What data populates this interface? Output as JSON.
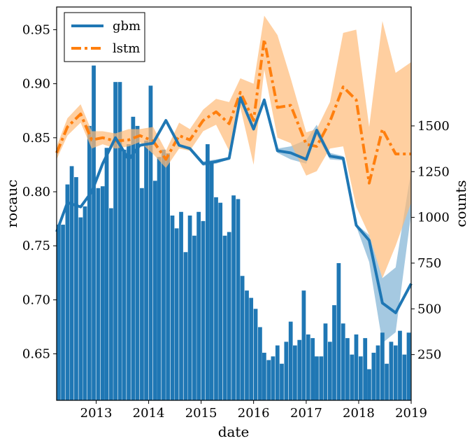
{
  "chart_data": {
    "type": "line",
    "xlabel": "date",
    "ylabel": "rocauc",
    "y2label": "counts",
    "xlim": [
      "2012-04-01",
      "2019-01-01"
    ],
    "ylim": [
      0.607,
      0.971
    ],
    "y2lim": [
      0,
      2150
    ],
    "xticks": [
      "2013",
      "2014",
      "2015",
      "2016",
      "2017",
      "2018",
      "2019"
    ],
    "xtick_dates": [
      "2013-01-01",
      "2014-01-01",
      "2015-01-01",
      "2016-01-01",
      "2017-01-01",
      "2018-01-01",
      "2019-01-01"
    ],
    "yticks": [
      "0.65",
      "0.70",
      "0.75",
      "0.80",
      "0.85",
      "0.90",
      "0.95"
    ],
    "ytick_values": [
      0.65,
      0.7,
      0.75,
      0.8,
      0.85,
      0.9,
      0.95
    ],
    "y2ticks": [
      "250",
      "500",
      "750",
      "1000",
      "1250",
      "1500"
    ],
    "y2tick_values": [
      250,
      500,
      750,
      1000,
      1250,
      1500
    ],
    "legend_position": "top-left",
    "grid": false,
    "colors": {
      "gbm": "#1f77b4",
      "lstm": "#ff7f0e",
      "lstm_band": "#ffbb78",
      "gbm_band": "#1f77b4"
    },
    "series": [
      {
        "name": "gbm",
        "style": "solid",
        "x": [
          "2012-04-01",
          "2012-06-15",
          "2012-09-15",
          "2012-12-01",
          "2013-02-15",
          "2013-05-15",
          "2013-08-15",
          "2013-11-01",
          "2014-02-01",
          "2014-05-01",
          "2014-08-01",
          "2014-10-15",
          "2015-01-15",
          "2015-04-15",
          "2015-07-15",
          "2015-10-01",
          "2016-01-01",
          "2016-03-15",
          "2016-06-15",
          "2016-09-15",
          "2017-01-01",
          "2017-03-15",
          "2017-06-15",
          "2017-09-15",
          "2017-12-15",
          "2018-03-15",
          "2018-06-15",
          "2018-09-15",
          "2019-01-01"
        ],
        "y": [
          0.763,
          0.79,
          0.786,
          0.8,
          0.826,
          0.85,
          0.83,
          0.843,
          0.845,
          0.866,
          0.843,
          0.84,
          0.826,
          0.828,
          0.831,
          0.887,
          0.858,
          0.885,
          0.838,
          0.836,
          0.83,
          0.857,
          0.833,
          0.831,
          0.769,
          0.755,
          0.697,
          0.688,
          0.715
        ],
        "lower": [
          0.763,
          0.79,
          0.786,
          0.8,
          0.826,
          0.85,
          0.83,
          0.843,
          0.845,
          0.866,
          0.843,
          0.838,
          0.824,
          0.826,
          0.83,
          0.885,
          0.856,
          0.883,
          0.836,
          0.83,
          0.826,
          0.852,
          0.83,
          0.829,
          0.768,
          0.735,
          0.66,
          0.67,
          0.78
        ],
        "upper": [
          0.763,
          0.79,
          0.786,
          0.8,
          0.826,
          0.85,
          0.83,
          0.843,
          0.845,
          0.866,
          0.843,
          0.842,
          0.828,
          0.83,
          0.832,
          0.889,
          0.86,
          0.887,
          0.84,
          0.842,
          0.848,
          0.862,
          0.836,
          0.833,
          0.77,
          0.76,
          0.72,
          0.73,
          0.82
        ]
      },
      {
        "name": "lstm",
        "style": "dashdot",
        "x": [
          "2012-04-01",
          "2012-06-15",
          "2012-09-15",
          "2012-12-01",
          "2013-02-15",
          "2013-05-15",
          "2013-08-15",
          "2013-11-01",
          "2014-02-01",
          "2014-05-01",
          "2014-08-01",
          "2014-10-15",
          "2015-01-15",
          "2015-04-15",
          "2015-07-15",
          "2015-10-01",
          "2016-01-01",
          "2016-03-15",
          "2016-06-15",
          "2016-09-15",
          "2017-01-01",
          "2017-03-15",
          "2017-06-15",
          "2017-09-15",
          "2017-12-15",
          "2018-03-15",
          "2018-06-15",
          "2018-09-15",
          "2019-01-01"
        ],
        "y": [
          0.836,
          0.86,
          0.872,
          0.848,
          0.85,
          0.847,
          0.848,
          0.852,
          0.847,
          0.83,
          0.852,
          0.848,
          0.866,
          0.874,
          0.863,
          0.892,
          0.866,
          0.941,
          0.878,
          0.88,
          0.844,
          0.842,
          0.865,
          0.897,
          0.885,
          0.808,
          0.858,
          0.835,
          0.835
        ],
        "lower": [
          0.83,
          0.852,
          0.864,
          0.84,
          0.844,
          0.84,
          0.842,
          0.846,
          0.835,
          0.822,
          0.84,
          0.838,
          0.856,
          0.862,
          0.838,
          0.878,
          0.825,
          0.913,
          0.85,
          0.845,
          0.815,
          0.819,
          0.84,
          0.842,
          0.786,
          0.76,
          0.72,
          0.75,
          0.79
        ],
        "upper": [
          0.842,
          0.868,
          0.881,
          0.856,
          0.856,
          0.854,
          0.858,
          0.858,
          0.86,
          0.838,
          0.864,
          0.858,
          0.876,
          0.886,
          0.883,
          0.905,
          0.9,
          0.963,
          0.945,
          0.905,
          0.855,
          0.858,
          0.883,
          0.947,
          0.95,
          0.86,
          0.958,
          0.91,
          0.92
        ]
      }
    ],
    "bars": {
      "name": "counts",
      "width_days": 28,
      "x": [
        "2012-04-15",
        "2012-05-15",
        "2012-06-15",
        "2012-07-15",
        "2012-08-15",
        "2012-09-15",
        "2012-10-15",
        "2012-11-15",
        "2012-12-15",
        "2013-01-15",
        "2013-02-15",
        "2013-03-15",
        "2013-04-15",
        "2013-05-15",
        "2013-06-15",
        "2013-07-15",
        "2013-08-15",
        "2013-09-15",
        "2013-10-15",
        "2013-11-15",
        "2013-12-15",
        "2014-01-15",
        "2014-02-15",
        "2014-03-15",
        "2014-04-15",
        "2014-05-15",
        "2014-06-15",
        "2014-07-15",
        "2014-08-15",
        "2014-09-15",
        "2014-10-15",
        "2014-11-15",
        "2014-12-15",
        "2015-01-15",
        "2015-02-15",
        "2015-03-15",
        "2015-04-15",
        "2015-05-15",
        "2015-06-15",
        "2015-07-15",
        "2015-08-15",
        "2015-09-15",
        "2015-10-15",
        "2015-11-15",
        "2015-12-15",
        "2016-01-15",
        "2016-02-15",
        "2016-03-15",
        "2016-04-15",
        "2016-05-15",
        "2016-06-15",
        "2016-07-15",
        "2016-08-15",
        "2016-09-15",
        "2016-10-15",
        "2016-11-15",
        "2016-12-15",
        "2017-01-15",
        "2017-02-15",
        "2017-03-15",
        "2017-04-15",
        "2017-05-15",
        "2017-06-15",
        "2017-07-15",
        "2017-08-15",
        "2017-09-15",
        "2017-10-15",
        "2017-11-15",
        "2017-12-15",
        "2018-01-15",
        "2018-02-15",
        "2018-03-15",
        "2018-04-15",
        "2018-05-15",
        "2018-06-15",
        "2018-07-15",
        "2018-08-15",
        "2018-09-15",
        "2018-10-15",
        "2018-11-15",
        "2018-12-15"
      ],
      "values": [
        960,
        960,
        1180,
        1280,
        1220,
        1000,
        1060,
        1500,
        1830,
        1160,
        1170,
        1380,
        1050,
        1740,
        1740,
        1370,
        1400,
        1550,
        1500,
        1160,
        1420,
        1720,
        1200,
        1330,
        1370,
        1350,
        1010,
        940,
        1030,
        810,
        1010,
        900,
        1030,
        980,
        1400,
        1300,
        1110,
        1080,
        900,
        920,
        1120,
        1100,
        680,
        600,
        560,
        500,
        400,
        260,
        220,
        240,
        300,
        200,
        320,
        430,
        300,
        330,
        600,
        360,
        340,
        240,
        240,
        420,
        320,
        520,
        750,
        420,
        340,
        250,
        360,
        240,
        340,
        170,
        260,
        300,
        370,
        200,
        320,
        300,
        380,
        250,
        370
      ]
    }
  }
}
